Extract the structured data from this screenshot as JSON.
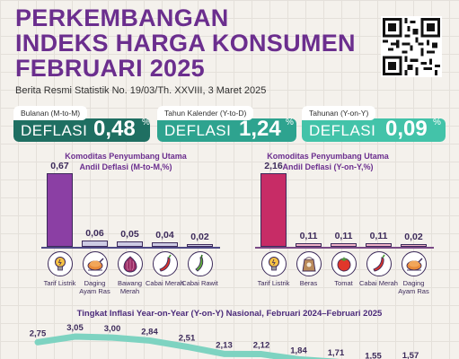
{
  "header": {
    "title_lines": [
      "PERKEMBANGAN",
      "INDEKS HARGA KONSUMEN",
      "FEBRUARI 2025"
    ],
    "subtitle": "Berita Resmi Statistik No. 19/03/Th. XXVIII, 3 Maret 2025",
    "qr_icon": "qr-code-icon"
  },
  "cards": [
    {
      "tab": "Bulanan (M-to-M)",
      "label": "DEFLASI",
      "value": "0,48",
      "unit": "%",
      "color": "#1f6f62"
    },
    {
      "tab": "Tahun Kalender (Y-to-D)",
      "label": "DEFLASI",
      "value": "1,24",
      "unit": "%",
      "color": "#2ea38f"
    },
    {
      "tab": "Tahunan (Y-on-Y)",
      "label": "DEFLASI",
      "value": "0,09",
      "unit": "%",
      "color": "#43c3a9"
    }
  ],
  "chart_data": [
    {
      "type": "bar",
      "title_line1": "Komoditas Penyumbang Utama",
      "title_line2": "Andil Deflasi (M-to-M,%)",
      "categories": [
        "Tarif Listrik",
        "Daging Ayam Ras",
        "Bawang Merah",
        "Cabai Merah",
        "Cabai Rawit"
      ],
      "values": [
        0.67,
        0.06,
        0.05,
        0.04,
        0.02
      ],
      "value_labels": [
        "0,67",
        "0,06",
        "0,05",
        "0,04",
        "0,02"
      ],
      "colors": [
        "#8b3fa4",
        "#cdcbe4",
        "#cdcbe4",
        "#cdcbe4",
        "#cdcbe4"
      ],
      "icons": [
        "lightbulb-icon",
        "roast-chicken-icon",
        "onion-icon",
        "red-chili-icon",
        "green-chili-icon"
      ]
    },
    {
      "type": "bar",
      "title_line1": "Komoditas Penyumbang Utama",
      "title_line2": "Andil Deflasi (Y-on-Y,%)",
      "categories": [
        "Tarif Listrik",
        "Beras",
        "Tomat",
        "Cabai Merah",
        "Daging Ayam Ras"
      ],
      "values": [
        2.16,
        0.11,
        0.11,
        0.11,
        0.02
      ],
      "value_labels": [
        "2,16",
        "0,11",
        "0,11",
        "0,11",
        "0,02"
      ],
      "colors": [
        "#c72c66",
        "#f1b4c9",
        "#f1b4c9",
        "#f1b4c9",
        "#f1b4c9"
      ],
      "icons": [
        "lightbulb-icon",
        "rice-sack-icon",
        "tomato-icon",
        "red-chili-icon",
        "roast-chicken-icon"
      ]
    },
    {
      "type": "line",
      "title": "Tingkat Inflasi Year-on-Year (Y-on-Y) Nasional, Februari 2024–Februari 2025",
      "values": [
        2.75,
        3.05,
        3.0,
        2.84,
        2.51,
        2.13,
        2.12,
        1.84,
        1.71,
        1.55,
        1.57
      ],
      "value_labels": [
        "2,75",
        "3,05",
        "3,00",
        "2,84",
        "2,51",
        "2,13",
        "2,12",
        "1,84",
        "1,71",
        "1,55",
        "1,57"
      ],
      "line_color": "#7ed3c1"
    }
  ]
}
